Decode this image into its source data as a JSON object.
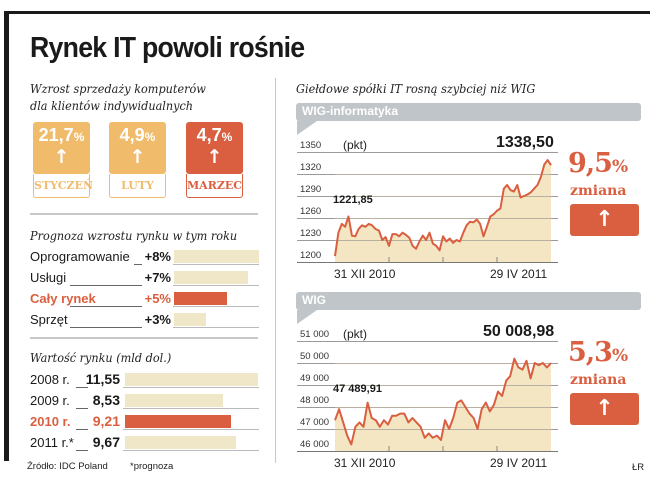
{
  "title": "Rynek IT powoli rośnie",
  "colors": {
    "accent": "#d95f40",
    "light_orange": "#f1bb6c",
    "bar_beige": "#f0e6c8",
    "fill_beige": "#f2e2b8",
    "banner_gray": "#bfc5c8",
    "frame": "#1a1a1a"
  },
  "left": {
    "sales": {
      "heading_line1": "Wzrost sprzedaży komputerów",
      "heading_line2": "dla klientów indywidualnych",
      "months": [
        {
          "value": "21,7",
          "unit": "%",
          "label": "STYCZEŃ",
          "direction": "up",
          "highlight": false
        },
        {
          "value": "4,9",
          "unit": "%",
          "label": "LUTY",
          "direction": "up",
          "highlight": false
        },
        {
          "value": "4,7",
          "unit": "%",
          "label": "MARZEC",
          "direction": "up",
          "highlight": true
        }
      ]
    },
    "forecast": {
      "heading": "Prognoza wzrostu rynku w tym roku",
      "rows": [
        {
          "label": "Oprogramowanie",
          "value": "+8%",
          "highlight": false
        },
        {
          "label": "Usługi",
          "value": "+7%",
          "highlight": false
        },
        {
          "label": "Cały rynek",
          "value": "+5%",
          "highlight": true
        },
        {
          "label": "Sprzęt",
          "value": "+3%",
          "highlight": false
        }
      ]
    },
    "market_value": {
      "heading": "Wartość rynku (mld dol.)",
      "rows": [
        {
          "label": "2008 r.",
          "value": "11,55",
          "highlight": false
        },
        {
          "label": "2009 r.",
          "value": "8,53",
          "highlight": false
        },
        {
          "label": "2010 r.",
          "value": "9,21",
          "highlight": true
        },
        {
          "label": "2011 r.*",
          "value": "9,67",
          "highlight": false
        }
      ]
    },
    "source": "Źródło: IDC Poland",
    "footnote": "*prognoza"
  },
  "right": {
    "heading": "Giełdowe spółki IT rosną szybciej niż WIG",
    "charts": [
      {
        "banner": "WIG-informatyka",
        "unit": "(pkt)",
        "start_value": "1221,85",
        "end_value": "1338,50",
        "change_pct": "9,5",
        "change_unit": "%",
        "change_label": "zmiana",
        "y_ticks": [
          "1350",
          "1320",
          "1290",
          "1260",
          "1230",
          "1200"
        ],
        "x_start": "31 XII 2010",
        "x_end": "29 IV 2011"
      },
      {
        "banner": "WIG",
        "unit": "(pkt)",
        "start_value": "47 489,91",
        "end_value": "50 008,98",
        "change_pct": "5,3",
        "change_unit": "%",
        "change_label": "zmiana",
        "y_ticks": [
          "51 000",
          "50 000",
          "49 000",
          "48 000",
          "47 000",
          "46 000"
        ],
        "x_start": "31 XII 2010",
        "x_end": "29 IV 2011"
      }
    ],
    "credit": "ŁR"
  },
  "chart_data": [
    {
      "type": "table",
      "title": "Wzrost sprzedaży komputerów dla klientów indywidualnych",
      "categories": [
        "STYCZEŃ",
        "LUTY",
        "MARZEC"
      ],
      "values": [
        21.7,
        4.9,
        4.7
      ],
      "unit": "%"
    },
    {
      "type": "bar",
      "title": "Prognoza wzrostu rynku w tym roku",
      "categories": [
        "Oprogramowanie",
        "Usługi",
        "Cały rynek",
        "Sprzęt"
      ],
      "values": [
        8,
        7,
        5,
        3
      ],
      "unit": "%",
      "orientation": "horizontal"
    },
    {
      "type": "bar",
      "title": "Wartość rynku (mld dol.)",
      "categories": [
        "2008 r.",
        "2009 r.",
        "2010 r.",
        "2011 r.*"
      ],
      "values": [
        11.55,
        8.53,
        9.21,
        9.67
      ],
      "orientation": "horizontal",
      "annotations": [
        "*prognoza"
      ]
    },
    {
      "type": "area",
      "title": "WIG-informatyka",
      "ylabel": "(pkt)",
      "ylim": [
        1200,
        1350
      ],
      "y_ticks": [
        1200,
        1230,
        1260,
        1290,
        1320,
        1350
      ],
      "x_labels": [
        "31 XII 2010",
        "29 IV 2011"
      ],
      "start": 1221.85,
      "end": 1338.5,
      "change": "9,5%",
      "grid": true,
      "values": [
        1208,
        1240,
        1252,
        1248,
        1262,
        1236,
        1235,
        1245,
        1250,
        1248,
        1252,
        1250,
        1245,
        1243,
        1230,
        1234,
        1222,
        1238,
        1238,
        1235,
        1240,
        1237,
        1233,
        1222,
        1218,
        1228,
        1236,
        1230,
        1240,
        1225,
        1222,
        1216,
        1235,
        1228,
        1232,
        1226,
        1230,
        1228,
        1240,
        1250,
        1255,
        1254,
        1258,
        1252,
        1235,
        1248,
        1262,
        1265,
        1270,
        1273,
        1300,
        1305,
        1298,
        1296,
        1305,
        1288,
        1290,
        1292,
        1295,
        1300,
        1305,
        1316,
        1333,
        1339,
        1332
      ]
    },
    {
      "type": "area",
      "title": "WIG",
      "ylabel": "(pkt)",
      "ylim": [
        46000,
        51000
      ],
      "y_ticks": [
        46000,
        47000,
        48000,
        49000,
        50000,
        51000
      ],
      "x_labels": [
        "31 XII 2010",
        "29 IV 2011"
      ],
      "start": 47489.91,
      "end": 50008.98,
      "change": "5,3%",
      "grid": true,
      "values": [
        47400,
        47900,
        47300,
        46700,
        46300,
        47100,
        47300,
        47100,
        48200,
        47500,
        47400,
        47100,
        47400,
        47200,
        47600,
        47600,
        47700,
        47700,
        47300,
        47500,
        47300,
        47100,
        46600,
        46800,
        46600,
        46700,
        46500,
        47400,
        47000,
        47500,
        48200,
        48300,
        48000,
        47700,
        47500,
        47000,
        47900,
        48200,
        47800,
        48100,
        48700,
        48500,
        49200,
        49400,
        50200,
        49800,
        49700,
        50100,
        49300,
        50000,
        49900,
        50000,
        49800,
        50000
      ]
    }
  ]
}
